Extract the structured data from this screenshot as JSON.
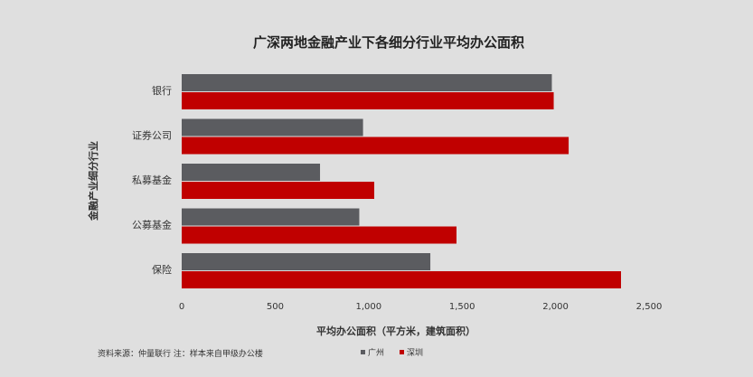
{
  "chart_data": {
    "type": "bar",
    "orientation": "horizontal",
    "title": "广深两地金融产业下各细分行业平均办公面积",
    "xlabel": "平均办公面积（平方米，建筑面积）",
    "ylabel": "金融产业细分行业",
    "categories": [
      "银行",
      "证券公司",
      "私募基金",
      "公募基金",
      "保险"
    ],
    "series": [
      {
        "name": "广州",
        "color": "#5b5c60",
        "values": [
          1980,
          970,
          740,
          950,
          1330
        ]
      },
      {
        "name": "深圳",
        "color": "#c00000",
        "values": [
          1990,
          2070,
          1030,
          1470,
          2350
        ]
      }
    ],
    "xlim": [
      0,
      2500
    ],
    "xticks": [
      0,
      500,
      1000,
      1500,
      2000,
      2500
    ],
    "xtick_labels": [
      "0",
      "500",
      "1,000",
      "1,500",
      "2,000",
      "2,500"
    ],
    "grid": false,
    "legend_position": "bottom-right"
  },
  "footnote": "资料来源：仲量联行   注：样本来自甲级办公楼"
}
